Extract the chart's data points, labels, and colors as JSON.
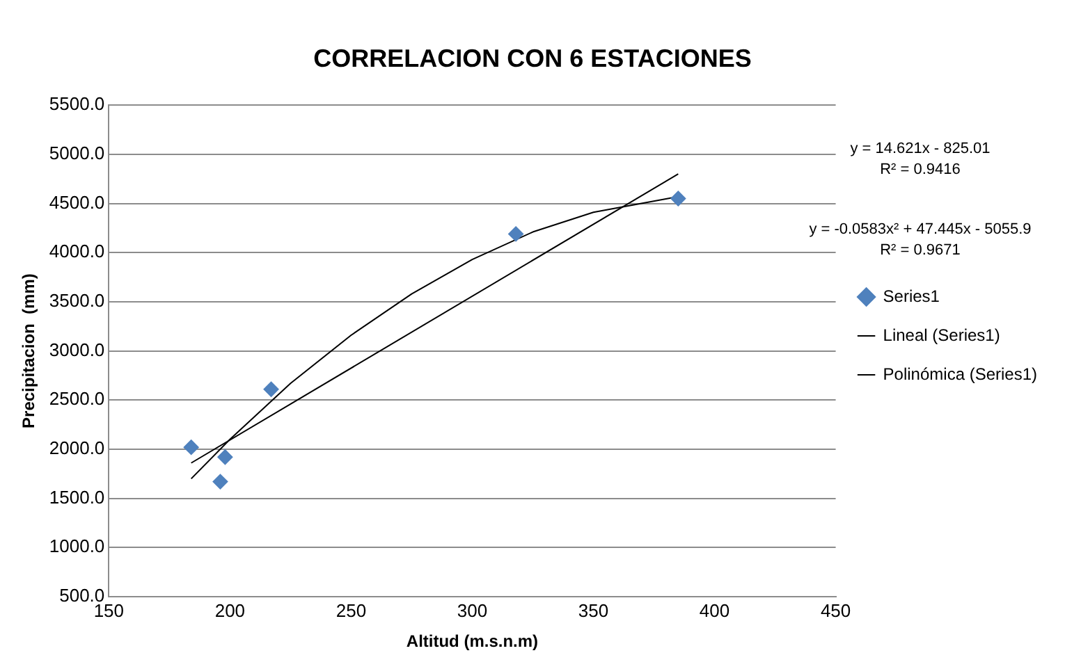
{
  "chart_data": {
    "type": "scatter",
    "title": "CORRELACION CON 6 ESTACIONES",
    "xlabel": "Altitud (m.s.n.m)",
    "ylabel": "Precipitacion  (mm)",
    "series": [
      {
        "name": "Series1",
        "type": "scatter",
        "color": "#4f81bd",
        "marker": "diamond",
        "x": [
          184,
          198,
          196,
          217,
          318,
          385
        ],
        "values": [
          2020,
          1920,
          1670,
          2610,
          4190,
          4550
        ]
      },
      {
        "name": "Lineal (Series1)",
        "type": "line",
        "color": "#000000",
        "line_style": "solid",
        "marker": "none",
        "x": [
          184,
          385
        ],
        "values": [
          1860,
          4800
        ]
      },
      {
        "name": "Polinómica (Series1)",
        "type": "line",
        "color": "#000000",
        "line_style": "solid",
        "marker": "none",
        "x": [
          184,
          200,
          225,
          250,
          275,
          300,
          325,
          350,
          385
        ],
        "values": [
          1700,
          2100,
          2670,
          3160,
          3580,
          3930,
          4210,
          4410,
          4570
        ]
      }
    ],
    "xlim": [
      150,
      450
    ],
    "xticks": [
      150,
      200,
      250,
      300,
      350,
      400,
      450
    ],
    "ylim": [
      500,
      5500
    ],
    "yticks": [
      {
        "value": 500,
        "label": "500.0"
      },
      {
        "value": 1000,
        "label": "1000.0"
      },
      {
        "value": 1500,
        "label": "1500.0"
      },
      {
        "value": 2000,
        "label": "2000.0"
      },
      {
        "value": 2500,
        "label": "2500.0"
      },
      {
        "value": 3000,
        "label": "3000.0"
      },
      {
        "value": 3500,
        "label": "3500.0"
      },
      {
        "value": 4000,
        "label": "4000.0"
      },
      {
        "value": 4500,
        "label": "4500.0"
      },
      {
        "value": 5000,
        "label": "5000.0"
      },
      {
        "value": 5500,
        "label": "5500.0"
      }
    ],
    "grid": "y",
    "legend": "right",
    "annotations": [
      "y = 14.621x - 825.01\nR² = 0.9416",
      "y = -0.0583x² + 47.445x - 5055.9\nR² = 0.9671"
    ]
  }
}
